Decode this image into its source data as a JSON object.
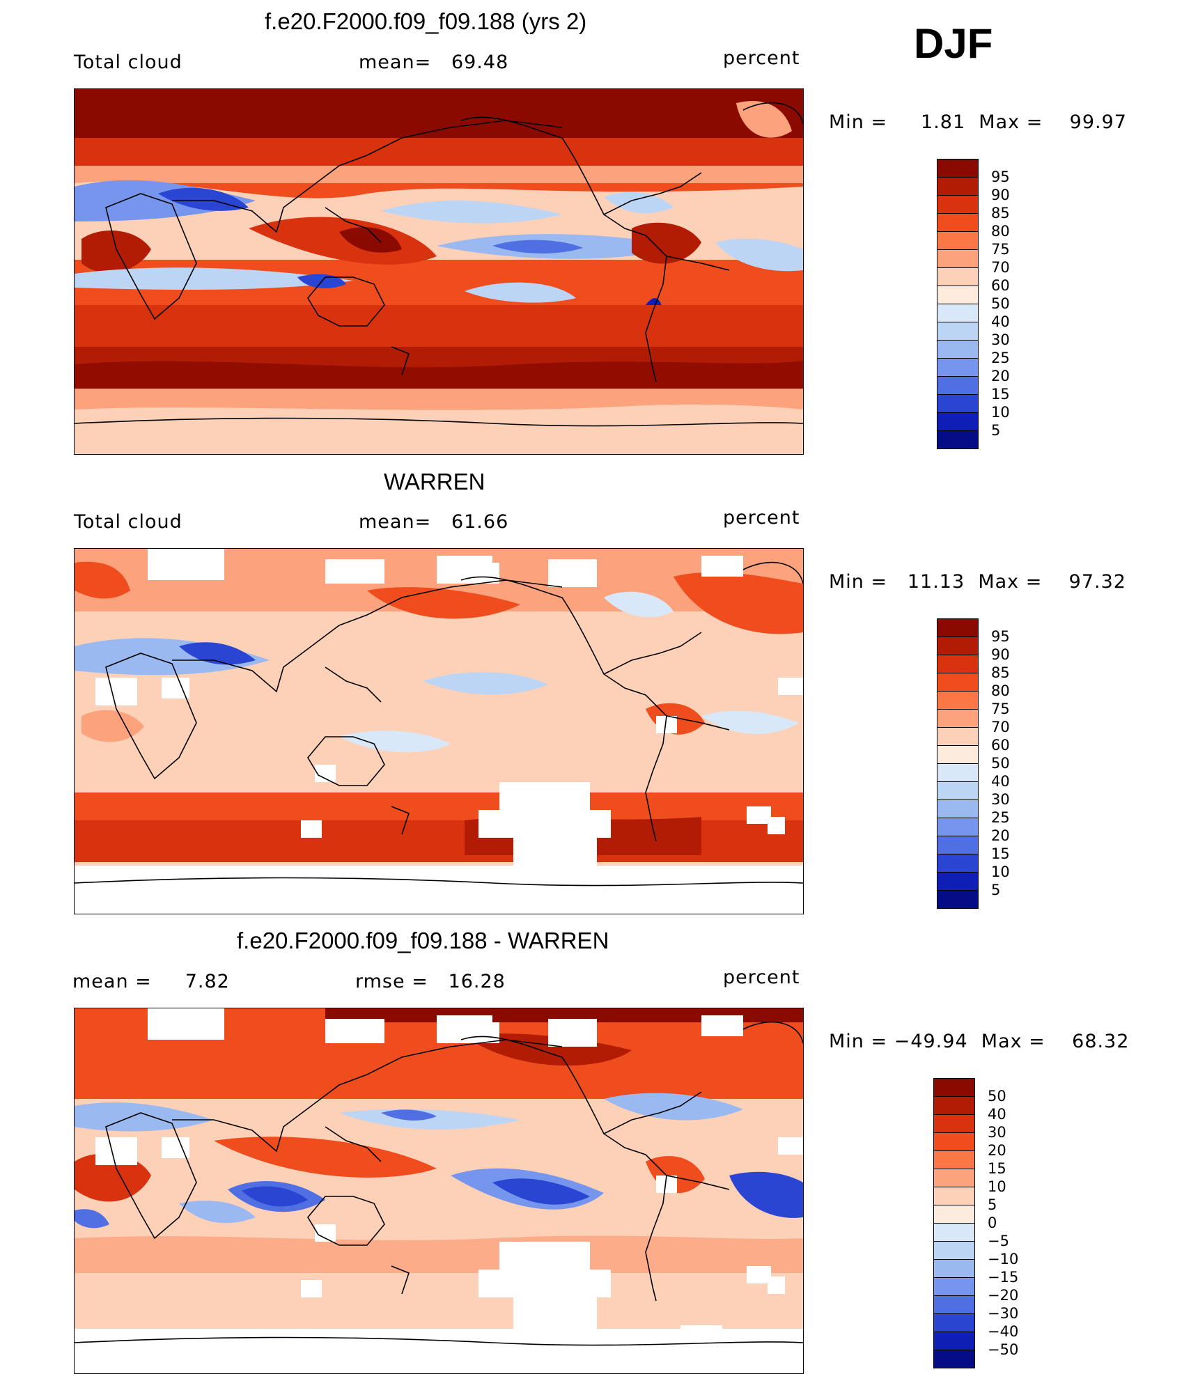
{
  "season": "DJF",
  "panels": [
    {
      "id": "model",
      "title": "f.e20.F2000.f09_f09.188 (yrs 2)",
      "left_label": "Total cloud",
      "mid_label": "mean=",
      "mid_value": "69.48",
      "right_label": "percent",
      "minmax_text": "Min =     1.81  Max =    99.97",
      "colorbar_labels": [
        "95",
        "90",
        "85",
        "80",
        "75",
        "70",
        "60",
        "50",
        "40",
        "30",
        "25",
        "20",
        "15",
        "10",
        "5"
      ],
      "colorbar_colors": [
        "#8b0a00",
        "#b21c05",
        "#d8320f",
        "#f04d1e",
        "#fb7746",
        "#fca37e",
        "#fdd1b8",
        "#fdecdd",
        "#d8e8f8",
        "#bcd5f5",
        "#9ab9f1",
        "#7596ec",
        "#4f6fe3",
        "#2a45d2",
        "#0f1fb5",
        "#040c86"
      ],
      "contour_levels": [
        5,
        10,
        15,
        20,
        25,
        30,
        40,
        50,
        60,
        70,
        75,
        80,
        85,
        90,
        95
      ]
    },
    {
      "id": "obs",
      "title": "WARREN",
      "left_label": "Total cloud",
      "mid_label": "mean=",
      "mid_value": "61.66",
      "right_label": "percent",
      "minmax_text": "Min =   11.13  Max =    97.32",
      "colorbar_labels": [
        "95",
        "90",
        "85",
        "80",
        "75",
        "70",
        "60",
        "50",
        "40",
        "30",
        "25",
        "20",
        "15",
        "10",
        "5"
      ],
      "colorbar_colors": [
        "#8b0a00",
        "#b21c05",
        "#d8320f",
        "#f04d1e",
        "#fb7746",
        "#fca37e",
        "#fdd1b8",
        "#fdecdd",
        "#d8e8f8",
        "#bcd5f5",
        "#9ab9f1",
        "#7596ec",
        "#4f6fe3",
        "#2a45d2",
        "#0f1fb5",
        "#040c86"
      ],
      "contour_levels": [
        5,
        10,
        15,
        20,
        25,
        30,
        40,
        50,
        60,
        70,
        75,
        80,
        85,
        90,
        95
      ]
    },
    {
      "id": "diff",
      "title": "f.e20.F2000.f09_f09.188 - WARREN",
      "left_label": "mean =",
      "left_value": "7.82",
      "mid_label": "rmse =",
      "mid_value": "16.28",
      "right_label": "percent",
      "minmax_text": "Min = −49.94  Max =    68.32",
      "colorbar_labels": [
        "50",
        "40",
        "30",
        "20",
        "15",
        "10",
        "5",
        "0",
        "−5",
        "−10",
        "−15",
        "−20",
        "−30",
        "−40",
        "−50"
      ],
      "colorbar_colors": [
        "#8b0a00",
        "#b21c05",
        "#d8320f",
        "#f04d1e",
        "#fb7746",
        "#fca37e",
        "#fdd1b8",
        "#fdecdd",
        "#d8e8f8",
        "#bcd5f5",
        "#9ab9f1",
        "#7596ec",
        "#4f6fe3",
        "#2a45d2",
        "#0f1fb5",
        "#040c86"
      ],
      "contour_levels": [
        -50,
        -40,
        -30,
        -20,
        -15,
        -10,
        -5,
        0,
        5,
        10,
        15,
        20,
        30,
        40,
        50
      ]
    }
  ]
}
